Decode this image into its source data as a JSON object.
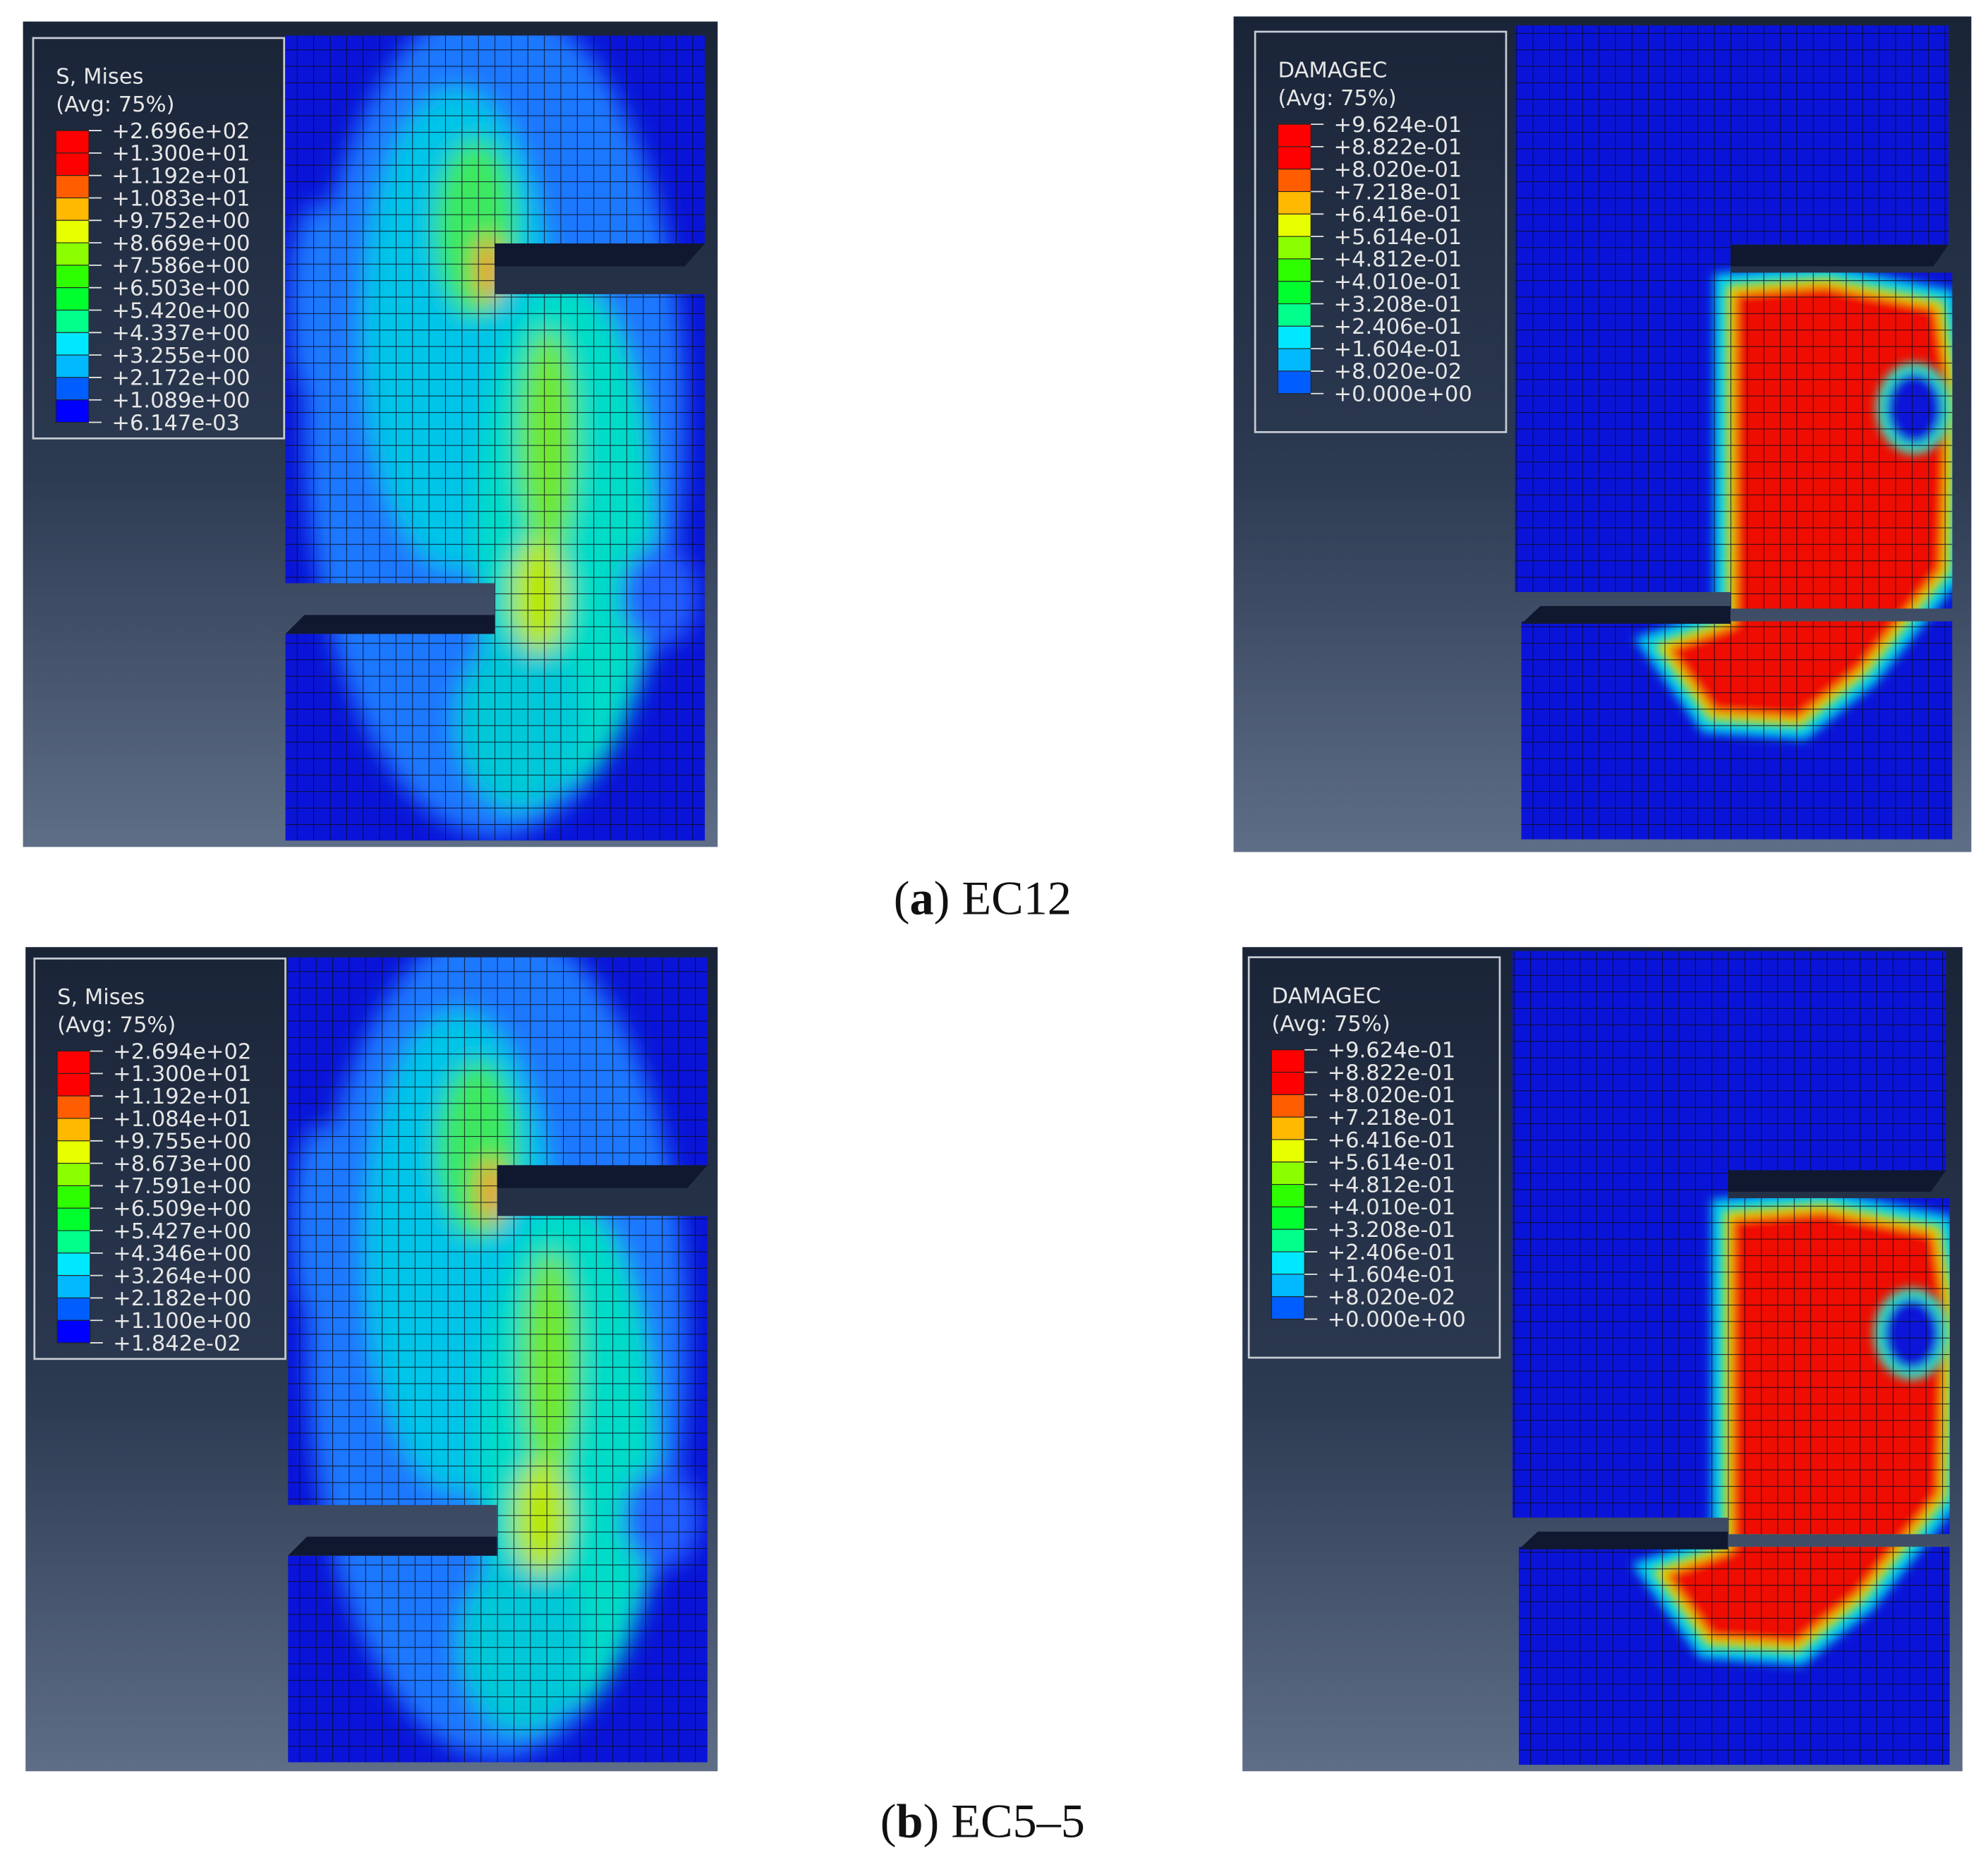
{
  "legend_colors": [
    "#ff0000",
    "#ff0000",
    "#ff5d00",
    "#ffb900",
    "#e8ff00",
    "#8bff00",
    "#2eff00",
    "#00ff2e",
    "#00ff8b",
    "#00e8ff",
    "#00b9ff",
    "#005dff",
    "#0000ff"
  ],
  "panels": [
    {
      "caption": [
        "(",
        "a",
        ") EC12"
      ],
      "plots": [
        {
          "kind": "stress",
          "title": "S, Mises",
          "subtitle": "(Avg: 75%)",
          "labels": [
            "+2.696e+02",
            "+1.300e+01",
            "+1.192e+01",
            "+1.083e+01",
            "+9.752e+00",
            "+8.669e+00",
            "+7.586e+00",
            "+6.503e+00",
            "+5.420e+00",
            "+4.337e+00",
            "+3.255e+00",
            "+2.172e+00",
            "+1.089e+00",
            "+6.147e-03"
          ]
        },
        {
          "kind": "damage",
          "title": "DAMAGEC",
          "subtitle": "(Avg: 75%)",
          "labels": [
            "+9.624e-01",
            "+8.822e-01",
            "+8.020e-01",
            "+7.218e-01",
            "+6.416e-01",
            "+5.614e-01",
            "+4.812e-01",
            "+4.010e-01",
            "+3.208e-01",
            "+2.406e-01",
            "+1.604e-01",
            "+8.020e-02",
            "+0.000e+00"
          ]
        }
      ]
    },
    {
      "caption": [
        "(",
        "b",
        ") EC5–5"
      ],
      "plots": [
        {
          "kind": "stress",
          "title": "S, Mises",
          "subtitle": "(Avg: 75%)",
          "labels": [
            "+2.694e+02",
            "+1.300e+01",
            "+1.192e+01",
            "+1.084e+01",
            "+9.755e+00",
            "+8.673e+00",
            "+7.591e+00",
            "+6.509e+00",
            "+5.427e+00",
            "+4.346e+00",
            "+3.264e+00",
            "+2.182e+00",
            "+1.100e+00",
            "+1.842e-02"
          ]
        },
        {
          "kind": "damage",
          "title": "DAMAGEC",
          "subtitle": "(Avg: 75%)",
          "labels": [
            "+9.624e-01",
            "+8.822e-01",
            "+8.020e-01",
            "+7.218e-01",
            "+6.416e-01",
            "+5.614e-01",
            "+4.812e-01",
            "+4.010e-01",
            "+3.208e-01",
            "+2.406e-01",
            "+1.604e-01",
            "+8.020e-02",
            "+0.000e+00"
          ]
        }
      ]
    }
  ]
}
